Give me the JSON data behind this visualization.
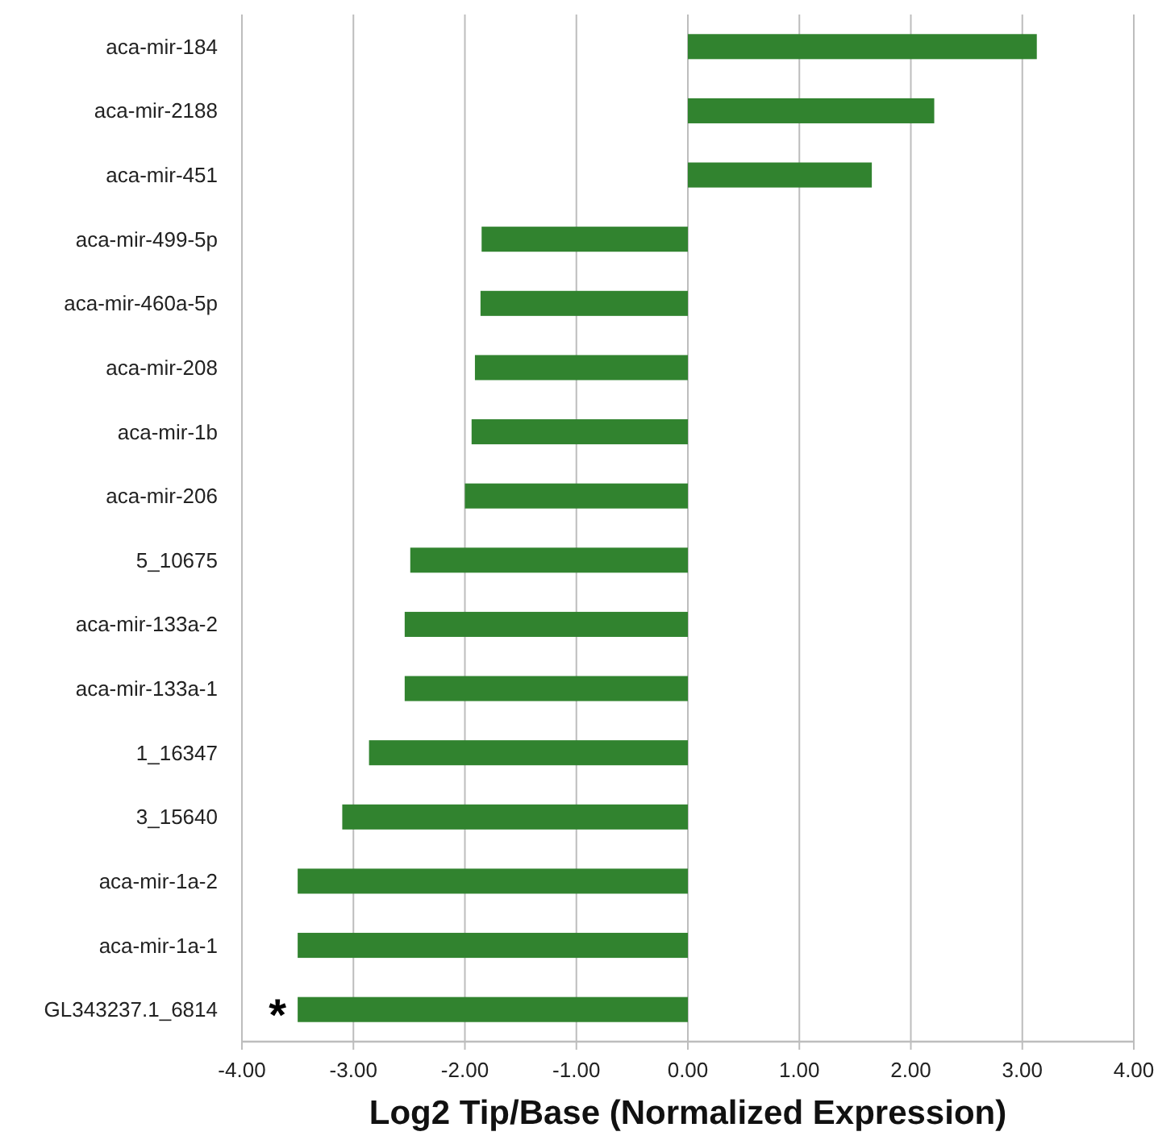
{
  "chart_data": {
    "type": "bar",
    "orientation": "horizontal",
    "xlabel": "Log2 Tip/Base (Normalized Expression)",
    "categories": [
      "aca-mir-184",
      "aca-mir-2188",
      "aca-mir-451",
      "aca-mir-499-5p",
      "aca-mir-460a-5p",
      "aca-mir-208",
      "aca-mir-1b",
      "aca-mir-206",
      "5_10675",
      "aca-mir-133a-2",
      "aca-mir-133a-1",
      "1_16347",
      "3_15640",
      "aca-mir-1a-2",
      "aca-mir-1a-1",
      "GL343237.1_6814"
    ],
    "values": [
      3.13,
      2.21,
      1.65,
      -1.85,
      -1.86,
      -1.91,
      -1.94,
      -2.0,
      -2.49,
      -2.54,
      -2.54,
      -2.86,
      -3.1,
      -3.5,
      -3.5,
      -3.5
    ],
    "color": "#31832f",
    "xlim": [
      -4,
      4
    ],
    "xticks": [
      {
        "value": -4,
        "label": "-4.00"
      },
      {
        "value": -3,
        "label": "-3.00"
      },
      {
        "value": -2,
        "label": "-2.00"
      },
      {
        "value": -1,
        "label": "-1.00"
      },
      {
        "value": 0,
        "label": "0.00"
      },
      {
        "value": 1,
        "label": "1.00"
      },
      {
        "value": 2,
        "label": "2.00"
      },
      {
        "value": 3,
        "label": "3.00"
      },
      {
        "value": 4,
        "label": "4.00"
      }
    ],
    "grid": "x",
    "annotations": [
      {
        "text": "*",
        "x": -3.5,
        "y": "GL343237.1_6814"
      }
    ]
  }
}
